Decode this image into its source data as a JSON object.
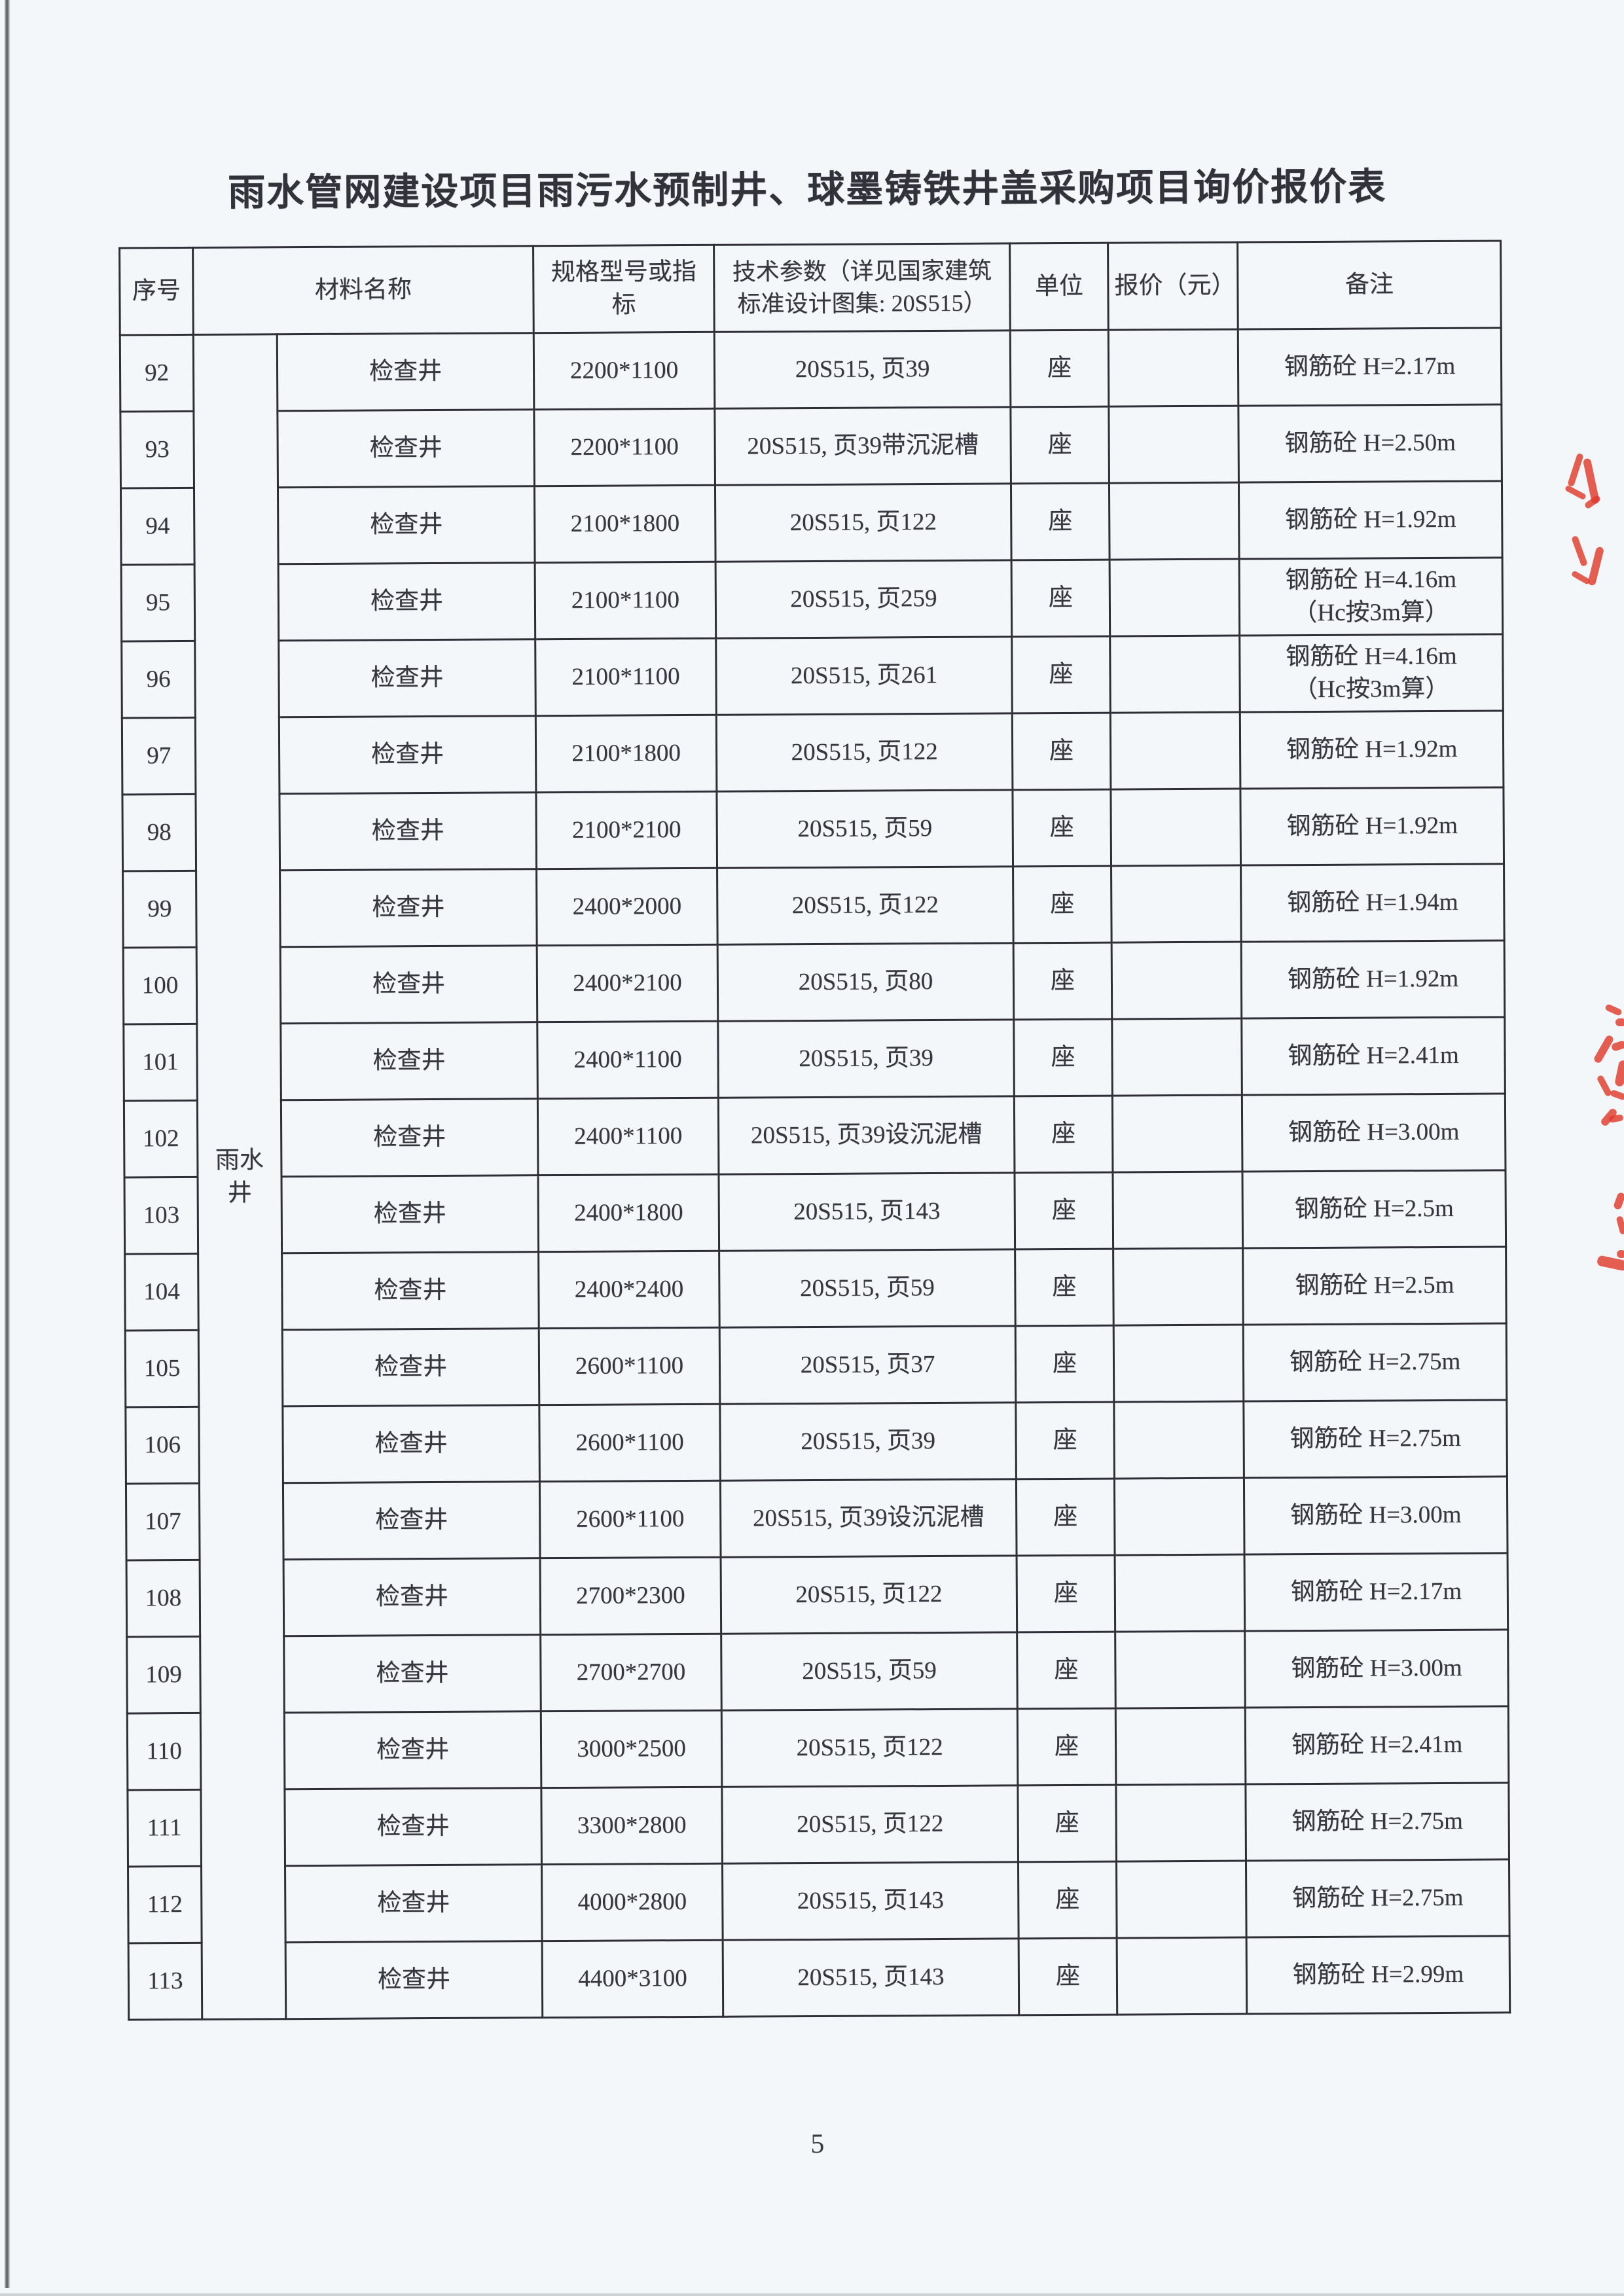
{
  "page": {
    "title": "雨水管网建设项目雨污水预制井、球墨铸铁井盖采购项目询价报价表",
    "page_number": "5"
  },
  "colors": {
    "stamp_red": "#e03a2c",
    "ink": "#35363e",
    "table_border": "#2e2f36",
    "paper": "#f4f7fa"
  },
  "table": {
    "headers": {
      "seq": "序号",
      "material": "材料名称",
      "spec": "规格型号或指标",
      "param": "技术参数（详见国家建筑标准设计图集: 20S515）",
      "unit": "单位",
      "price": "报价（元）",
      "note": "备注"
    },
    "category_label": "雨水井",
    "rows": [
      {
        "no": "92",
        "name": "检查井",
        "spec": "2200*1100",
        "param": "20S515, 页39",
        "unit": "座",
        "price": "",
        "note": "钢筋砼 H=2.17m",
        "note2": ""
      },
      {
        "no": "93",
        "name": "检查井",
        "spec": "2200*1100",
        "param": "20S515, 页39带沉泥槽",
        "unit": "座",
        "price": "",
        "note": "钢筋砼 H=2.50m",
        "note2": ""
      },
      {
        "no": "94",
        "name": "检查井",
        "spec": "2100*1800",
        "param": "20S515, 页122",
        "unit": "座",
        "price": "",
        "note": "钢筋砼 H=1.92m",
        "note2": ""
      },
      {
        "no": "95",
        "name": "检查井",
        "spec": "2100*1100",
        "param": "20S515, 页259",
        "unit": "座",
        "price": "",
        "note": "钢筋砼 H=4.16m",
        "note2": "（Hc按3m算）"
      },
      {
        "no": "96",
        "name": "检查井",
        "spec": "2100*1100",
        "param": "20S515, 页261",
        "unit": "座",
        "price": "",
        "note": "钢筋砼 H=4.16m",
        "note2": "（Hc按3m算）"
      },
      {
        "no": "97",
        "name": "检查井",
        "spec": "2100*1800",
        "param": "20S515, 页122",
        "unit": "座",
        "price": "",
        "note": "钢筋砼 H=1.92m",
        "note2": ""
      },
      {
        "no": "98",
        "name": "检查井",
        "spec": "2100*2100",
        "param": "20S515, 页59",
        "unit": "座",
        "price": "",
        "note": "钢筋砼 H=1.92m",
        "note2": ""
      },
      {
        "no": "99",
        "name": "检查井",
        "spec": "2400*2000",
        "param": "20S515, 页122",
        "unit": "座",
        "price": "",
        "note": "钢筋砼 H=1.94m",
        "note2": ""
      },
      {
        "no": "100",
        "name": "检查井",
        "spec": "2400*2100",
        "param": "20S515, 页80",
        "unit": "座",
        "price": "",
        "note": "钢筋砼 H=1.92m",
        "note2": ""
      },
      {
        "no": "101",
        "name": "检查井",
        "spec": "2400*1100",
        "param": "20S515, 页39",
        "unit": "座",
        "price": "",
        "note": "钢筋砼 H=2.41m",
        "note2": ""
      },
      {
        "no": "102",
        "name": "检查井",
        "spec": "2400*1100",
        "param": "20S515, 页39设沉泥槽",
        "unit": "座",
        "price": "",
        "note": "钢筋砼 H=3.00m",
        "note2": ""
      },
      {
        "no": "103",
        "name": "检查井",
        "spec": "2400*1800",
        "param": "20S515, 页143",
        "unit": "座",
        "price": "",
        "note": "钢筋砼 H=2.5m",
        "note2": ""
      },
      {
        "no": "104",
        "name": "检查井",
        "spec": "2400*2400",
        "param": "20S515, 页59",
        "unit": "座",
        "price": "",
        "note": "钢筋砼 H=2.5m",
        "note2": ""
      },
      {
        "no": "105",
        "name": "检查井",
        "spec": "2600*1100",
        "param": "20S515, 页37",
        "unit": "座",
        "price": "",
        "note": "钢筋砼 H=2.75m",
        "note2": ""
      },
      {
        "no": "106",
        "name": "检查井",
        "spec": "2600*1100",
        "param": "20S515, 页39",
        "unit": "座",
        "price": "",
        "note": "钢筋砼 H=2.75m",
        "note2": ""
      },
      {
        "no": "107",
        "name": "检查井",
        "spec": "2600*1100",
        "param": "20S515, 页39设沉泥槽",
        "unit": "座",
        "price": "",
        "note": "钢筋砼 H=3.00m",
        "note2": ""
      },
      {
        "no": "108",
        "name": "检查井",
        "spec": "2700*2300",
        "param": "20S515, 页122",
        "unit": "座",
        "price": "",
        "note": "钢筋砼 H=2.17m",
        "note2": ""
      },
      {
        "no": "109",
        "name": "检查井",
        "spec": "2700*2700",
        "param": "20S515, 页59",
        "unit": "座",
        "price": "",
        "note": "钢筋砼 H=3.00m",
        "note2": ""
      },
      {
        "no": "110",
        "name": "检查井",
        "spec": "3000*2500",
        "param": "20S515, 页122",
        "unit": "座",
        "price": "",
        "note": "钢筋砼 H=2.41m",
        "note2": ""
      },
      {
        "no": "111",
        "name": "检查井",
        "spec": "3300*2800",
        "param": "20S515, 页122",
        "unit": "座",
        "price": "",
        "note": "钢筋砼 H=2.75m",
        "note2": ""
      },
      {
        "no": "112",
        "name": "检查井",
        "spec": "4000*2800",
        "param": "20S515, 页143",
        "unit": "座",
        "price": "",
        "note": "钢筋砼 H=2.75m",
        "note2": ""
      },
      {
        "no": "113",
        "name": "检查井",
        "spec": "4400*3100",
        "param": "20S515, 页143",
        "unit": "座",
        "price": "",
        "note": "钢筋砼 H=2.99m",
        "note2": ""
      }
    ]
  }
}
